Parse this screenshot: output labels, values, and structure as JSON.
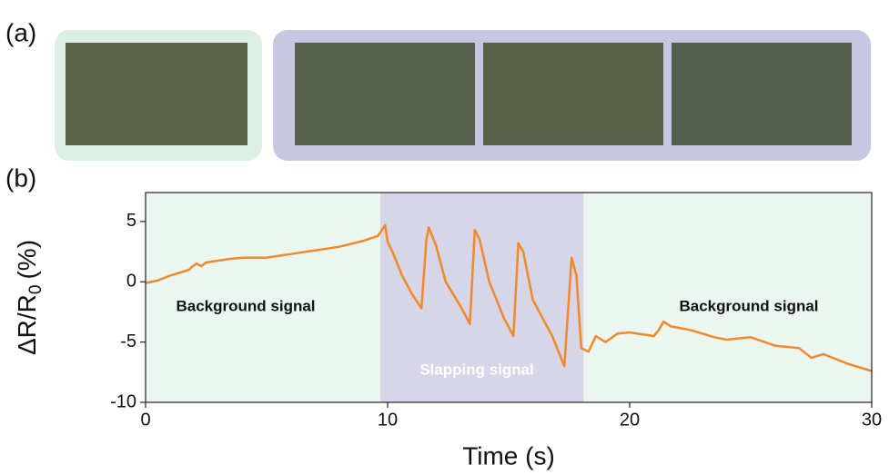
{
  "panel_labels": [
    "(a)",
    "(b)"
  ],
  "chart_data": {
    "type": "line",
    "xlabel": "Time (s)",
    "ylabel": "ΔR/R",
    "ylabel_sub": "0",
    "ylabel_suffix": "(%)",
    "xlim": [
      0,
      30
    ],
    "xticks": [
      0,
      10,
      20,
      30
    ],
    "ylim": [
      -10,
      7.4
    ],
    "yticks": [
      -10,
      -5,
      0,
      5
    ],
    "regions": [
      {
        "start": 0,
        "end": 9.7,
        "color": "#eaf6ef",
        "label": "Background signal"
      },
      {
        "start": 9.7,
        "end": 18.1,
        "color": "#d7d5e8",
        "label": "Slapping signal"
      },
      {
        "start": 18.1,
        "end": 30,
        "color": "#eaf6ef",
        "label": "Background signal"
      }
    ],
    "series": [
      {
        "color": "#f0892a",
        "x": [
          0,
          0.5,
          1,
          1.8,
          1.9,
          2.1,
          2.3,
          2.5,
          3.5,
          4,
          5,
          6,
          7,
          8,
          9,
          9.6,
          9.9,
          10.0,
          10.2,
          10.6,
          11.0,
          11.4,
          11.6,
          11.7,
          12.0,
          12.4,
          13.0,
          13.4,
          13.6,
          13.8,
          14.2,
          14.8,
          15.2,
          15.4,
          15.6,
          16.0,
          16.8,
          17.3,
          17.6,
          17.8,
          18.0,
          18.3,
          18.6,
          19,
          19.5,
          20,
          21,
          21.2,
          21.4,
          21.7,
          22.5,
          23.5,
          24,
          25,
          26,
          27,
          27.5,
          28,
          29,
          30
        ],
        "values": [
          -0.1,
          0.1,
          0.5,
          1.0,
          1.2,
          1.5,
          1.3,
          1.6,
          1.9,
          2.0,
          2.0,
          2.3,
          2.6,
          2.9,
          3.4,
          3.8,
          4.7,
          3.3,
          2.5,
          0.5,
          -1.0,
          -2.2,
          3.5,
          4.5,
          3.0,
          0.0,
          -2.0,
          -3.5,
          4.3,
          3.5,
          0.0,
          -3.0,
          -4.5,
          3.2,
          2.5,
          -1.5,
          -4.5,
          -7.0,
          2.0,
          0.5,
          -5.5,
          -5.8,
          -4.5,
          -5.0,
          -4.3,
          -4.2,
          -4.5,
          -4.0,
          -3.3,
          -3.7,
          -4.0,
          -4.6,
          -4.8,
          -4.6,
          -5.3,
          -5.5,
          -6.3,
          -6.0,
          -6.8,
          -7.4
        ]
      }
    ]
  }
}
